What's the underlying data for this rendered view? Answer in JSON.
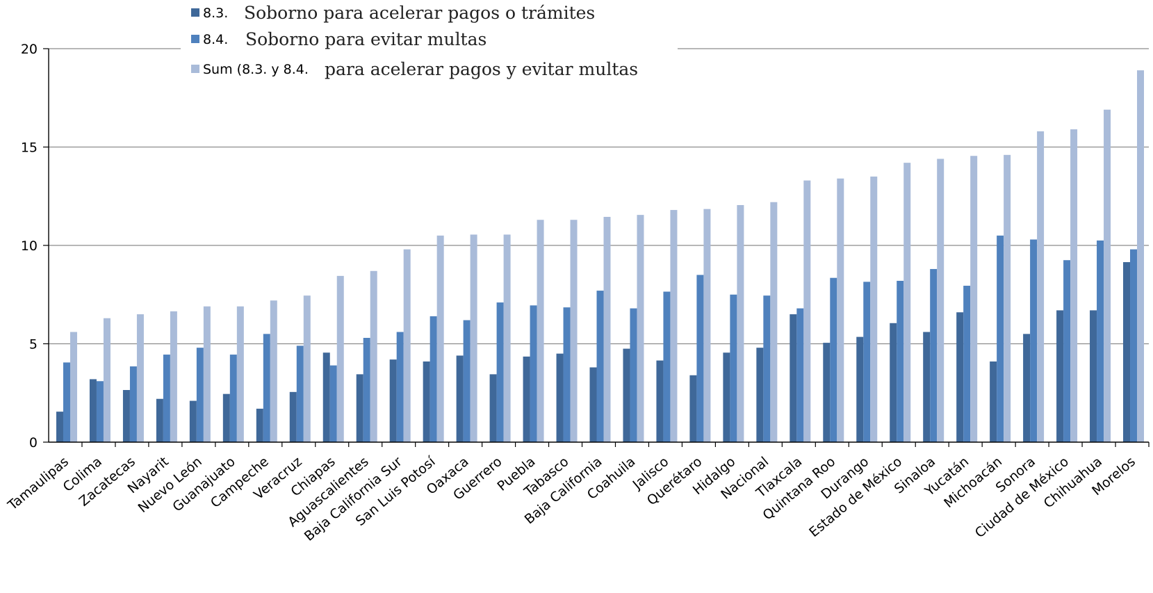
{
  "chart_data": {
    "type": "bar",
    "title": "",
    "xlabel": "",
    "ylabel": "",
    "ylim": [
      0,
      20
    ],
    "yticks": [
      "0",
      "5",
      "10",
      "15",
      "20"
    ],
    "grid": true,
    "legend_position": "top",
    "categories": [
      "Tamaulipas",
      "Colima",
      "Zacatecas",
      "Nayarit",
      "Nuevo León",
      "Guanajuato",
      "Campeche",
      "Veracruz",
      "Chiapas",
      "Aguascalientes",
      "Baja California Sur",
      "San Luis Potosí",
      "Oaxaca",
      "Guerrero",
      "Puebla",
      "Tabasco",
      "Baja California",
      "Coahuila",
      "Jalisco",
      "Querétaro",
      "Hidalgo",
      "Nacional",
      "Tlaxcala",
      "Quintana Roo",
      "Durango",
      "Estado de México",
      "Sinaloa",
      "Yucatán",
      "Michoacán",
      "Sonora",
      "Ciudad de México",
      "Chihuahua",
      "Morelos"
    ],
    "series": [
      {
        "code": "8.3.",
        "name": "Soborno para acelerar pagos o trámites",
        "color": "#3f6899",
        "values": [
          1.55,
          3.2,
          2.65,
          2.2,
          2.1,
          2.45,
          1.7,
          2.55,
          4.55,
          3.45,
          4.2,
          4.1,
          4.4,
          3.45,
          4.35,
          4.5,
          3.8,
          4.75,
          4.15,
          3.4,
          4.55,
          4.8,
          6.5,
          5.05,
          5.35,
          6.05,
          5.6,
          6.6,
          4.1,
          5.5,
          6.7,
          6.7,
          9.15
        ]
      },
      {
        "code": "8.4.",
        "name": "Soborno para evitar multas",
        "color": "#4f81bd",
        "values": [
          4.05,
          3.1,
          3.85,
          4.45,
          4.8,
          4.45,
          5.5,
          4.9,
          3.9,
          5.3,
          5.6,
          6.4,
          6.2,
          7.1,
          6.95,
          6.85,
          7.7,
          6.8,
          7.65,
          8.5,
          7.5,
          7.45,
          6.8,
          8.35,
          8.15,
          8.2,
          8.8,
          7.95,
          10.5,
          10.3,
          9.25,
          10.25,
          9.8
        ]
      },
      {
        "code": "Sum (8.3. y 8.4.",
        "name": "para acelerar pagos y evitar multas",
        "color": "#a9bbd9",
        "values": [
          5.6,
          6.3,
          6.5,
          6.65,
          6.9,
          6.9,
          7.2,
          7.45,
          8.45,
          8.7,
          9.8,
          10.5,
          10.55,
          10.55,
          11.3,
          11.3,
          11.45,
          11.55,
          11.8,
          11.85,
          12.05,
          12.2,
          13.3,
          13.4,
          13.5,
          14.2,
          14.4,
          14.55,
          14.6,
          15.8,
          15.9,
          16.9,
          18.9
        ]
      }
    ]
  }
}
